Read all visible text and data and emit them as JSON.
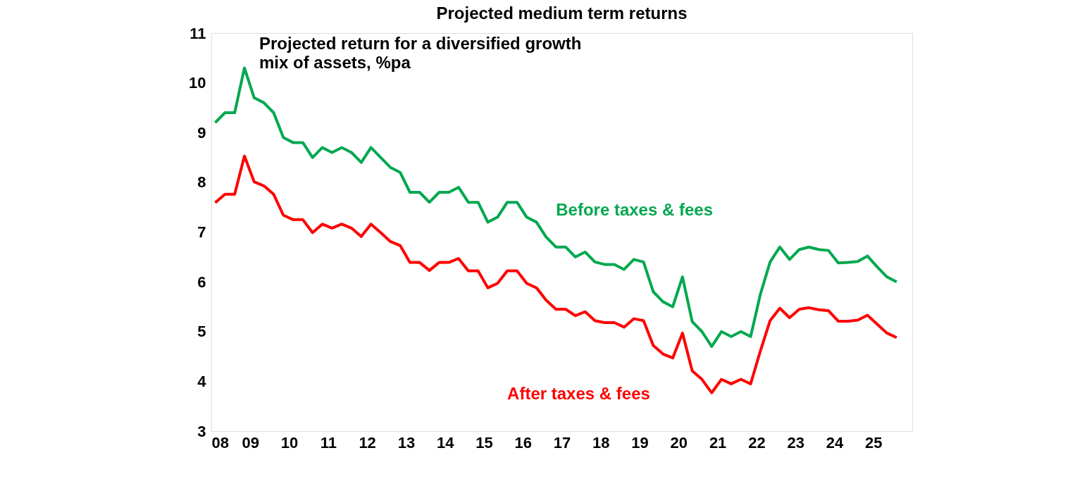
{
  "chart_data": {
    "type": "line",
    "title": "Projected medium term returns",
    "x": [
      2008.1,
      2008.35,
      2008.6,
      2008.85,
      2009.1,
      2009.35,
      2009.6,
      2009.85,
      2010.1,
      2010.35,
      2010.6,
      2010.85,
      2011.1,
      2011.35,
      2011.6,
      2011.85,
      2012.1,
      2012.35,
      2012.6,
      2012.85,
      2013.1,
      2013.35,
      2013.6,
      2013.85,
      2014.1,
      2014.35,
      2014.6,
      2014.85,
      2015.1,
      2015.35,
      2015.6,
      2015.85,
      2016.1,
      2016.35,
      2016.6,
      2016.85,
      2017.1,
      2017.35,
      2017.6,
      2017.85,
      2018.1,
      2018.35,
      2018.6,
      2018.85,
      2019.1,
      2019.35,
      2019.6,
      2019.85,
      2020.1,
      2020.35,
      2020.6,
      2020.85,
      2021.1,
      2021.35,
      2021.6,
      2021.85,
      2022.1,
      2022.35,
      2022.6,
      2022.85,
      2023.1,
      2023.35,
      2023.6,
      2023.85,
      2024.1,
      2024.35,
      2024.6,
      2024.85,
      2025.1,
      2025.35,
      2025.6
    ],
    "series": [
      {
        "name": "Before taxes & fees",
        "color": "#00a84f",
        "values": [
          9.2,
          9.4,
          9.4,
          10.3,
          9.7,
          9.6,
          9.4,
          8.9,
          8.8,
          8.8,
          8.5,
          8.7,
          8.6,
          8.7,
          8.6,
          8.4,
          8.7,
          8.5,
          8.3,
          8.2,
          7.8,
          7.8,
          7.6,
          7.8,
          7.8,
          7.9,
          7.6,
          7.6,
          7.2,
          7.3,
          7.6,
          7.6,
          7.3,
          7.2,
          6.9,
          6.7,
          6.7,
          6.5,
          6.6,
          6.4,
          6.35,
          6.35,
          6.25,
          6.45,
          6.4,
          5.8,
          5.6,
          5.5,
          6.1,
          5.2,
          5.0,
          4.7,
          5.0,
          4.9,
          5.0,
          4.9,
          5.75,
          6.4,
          6.7,
          6.45,
          6.65,
          6.7,
          6.65,
          6.63,
          6.38,
          6.39,
          6.41,
          6.52,
          6.3,
          6.1,
          6.0
        ]
      },
      {
        "name": "After taxes & fees",
        "color": "#ff0000",
        "values": [
          7.59,
          7.76,
          7.76,
          8.53,
          8.01,
          7.93,
          7.76,
          7.34,
          7.25,
          7.25,
          6.99,
          7.16,
          7.08,
          7.16,
          7.08,
          6.91,
          7.16,
          6.99,
          6.81,
          6.73,
          6.39,
          6.39,
          6.23,
          6.39,
          6.39,
          6.47,
          6.22,
          6.22,
          5.88,
          5.97,
          6.22,
          6.22,
          5.97,
          5.88,
          5.63,
          5.45,
          5.45,
          5.32,
          5.4,
          5.22,
          5.18,
          5.18,
          5.09,
          5.26,
          5.22,
          4.72,
          4.55,
          4.47,
          4.97,
          4.21,
          4.04,
          3.77,
          4.04,
          3.95,
          4.04,
          3.95,
          4.61,
          5.22,
          5.47,
          5.28,
          5.45,
          5.48,
          5.44,
          5.42,
          5.21,
          5.21,
          5.23,
          5.33,
          5.15,
          4.97,
          4.88
        ]
      }
    ],
    "xlim": [
      2008,
      2026
    ],
    "xticks": [
      {
        "value": 2008,
        "label": "08"
      },
      {
        "value": 2009,
        "label": "09"
      },
      {
        "value": 2010,
        "label": "10"
      },
      {
        "value": 2011,
        "label": "11"
      },
      {
        "value": 2012,
        "label": "12"
      },
      {
        "value": 2013,
        "label": "13"
      },
      {
        "value": 2014,
        "label": "14"
      },
      {
        "value": 2015,
        "label": "15"
      },
      {
        "value": 2016,
        "label": "16"
      },
      {
        "value": 2017,
        "label": "17"
      },
      {
        "value": 2018,
        "label": "18"
      },
      {
        "value": 2019,
        "label": "19"
      },
      {
        "value": 2020,
        "label": "20"
      },
      {
        "value": 2021,
        "label": "21"
      },
      {
        "value": 2022,
        "label": "22"
      },
      {
        "value": 2023,
        "label": "23"
      },
      {
        "value": 2024,
        "label": "24"
      },
      {
        "value": 2025,
        "label": "25"
      }
    ],
    "ylim": [
      3,
      11
    ],
    "yticks": [
      3,
      4,
      5,
      6,
      7,
      8,
      9,
      10,
      11
    ],
    "annotations": [
      "Projected return for a diversified growth mix of assets, %pa"
    ],
    "grid": false,
    "marker": "none",
    "line_style": "solid"
  }
}
